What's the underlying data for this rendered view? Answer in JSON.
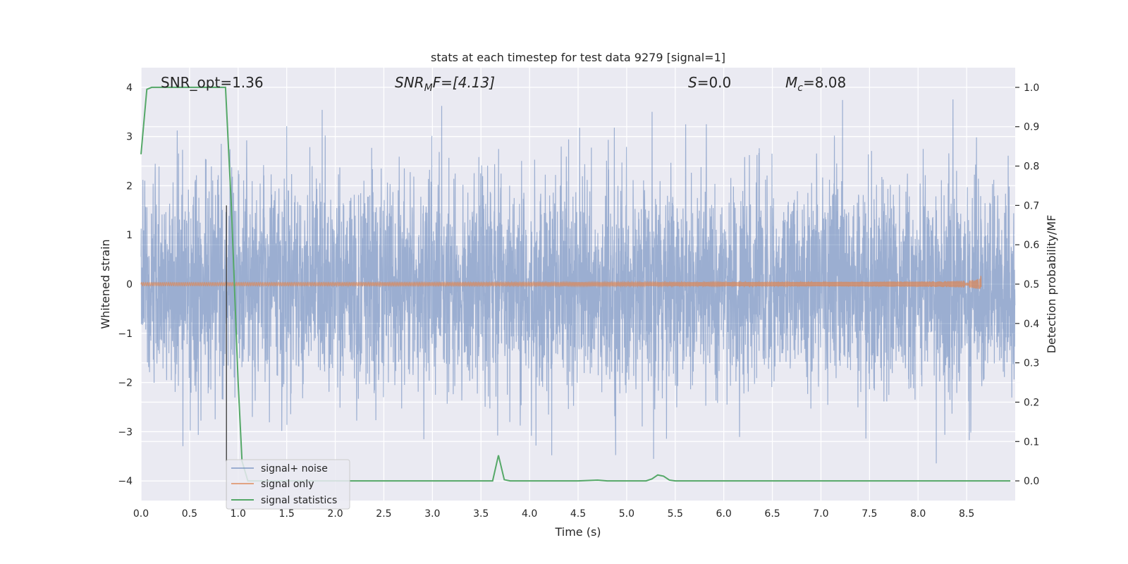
{
  "chart_data": {
    "type": "line",
    "title": "stats at each timestep for test data 9279 [signal=1]",
    "xlabel": "Time (s)",
    "ylabel": "Whitened strain",
    "y2label": "Detection probability/MF",
    "xlim": [
      0.0,
      9.0
    ],
    "ylim": [
      -4.4,
      4.4
    ],
    "y2lim": [
      -0.05,
      1.05
    ],
    "xticks": [
      0.0,
      0.5,
      1.0,
      1.5,
      2.0,
      2.5,
      3.0,
      3.5,
      4.0,
      4.5,
      5.0,
      5.5,
      6.0,
      6.5,
      7.0,
      7.5,
      8.0,
      8.5
    ],
    "xtick_labels": [
      "0.0",
      "0.5",
      "1.0",
      "1.5",
      "2.0",
      "2.5",
      "3.0",
      "3.5",
      "4.0",
      "4.5",
      "5.0",
      "5.5",
      "6.0",
      "6.5",
      "7.0",
      "7.5",
      "8.0",
      "8.5"
    ],
    "yticks": [
      -4,
      -3,
      -2,
      -1,
      0,
      1,
      2,
      3,
      4
    ],
    "ytick_labels": [
      "−4",
      "−3",
      "−2",
      "−1",
      "0",
      "1",
      "2",
      "3",
      "4"
    ],
    "y2ticks": [
      0.0,
      0.1,
      0.2,
      0.3,
      0.4,
      0.5,
      0.6,
      0.7,
      0.8,
      0.9,
      1.0
    ],
    "y2tick_labels": [
      "0.0",
      "0.1",
      "0.2",
      "0.3",
      "0.4",
      "0.5",
      "0.6",
      "0.7",
      "0.8",
      "0.9",
      "1.0"
    ],
    "grid": true,
    "legend_position": "lower-left",
    "annotations": {
      "snr_opt": "SNR_opt=1.36",
      "snr_mf_base": "SNR",
      "snr_mf_sub": "M",
      "snr_mf_rest": "F=[4.13]",
      "s_sym": "S",
      "s_rest": "=0.0",
      "mc_base": "M",
      "mc_sub": "c",
      "mc_rest": "=8.08"
    },
    "vline_x": 0.88,
    "series": [
      {
        "name": "signal+ noise",
        "axis": "left",
        "color": "#4c72b0",
        "description_range": [
          -3.7,
          4.0
        ],
        "sample_rate_hz": 512
      },
      {
        "name": "signal only",
        "axis": "left",
        "color": "#dd8452",
        "chirp_end_time": 8.65,
        "chirp_end_amplitude": 0.2
      },
      {
        "name": "signal statistics",
        "axis": "right",
        "color": "#55a868",
        "x": [
          0.0,
          0.06,
          0.11,
          0.2,
          0.3,
          0.5,
          0.7,
          0.87,
          0.93,
          1.0,
          1.04,
          1.1,
          1.2,
          1.5,
          2.0,
          2.5,
          3.0,
          3.3,
          3.5,
          3.62,
          3.68,
          3.74,
          3.8,
          4.0,
          4.5,
          4.7,
          4.8,
          5.0,
          5.2,
          5.26,
          5.32,
          5.38,
          5.44,
          5.5,
          6.0,
          6.5,
          7.0,
          7.5,
          8.0,
          8.5,
          8.95
        ],
        "y": [
          0.83,
          0.995,
          1.0,
          1.0,
          1.0,
          1.0,
          1.0,
          1.0,
          0.7,
          0.25,
          0.05,
          0.0,
          0.0,
          0.0,
          0.0,
          0.0,
          0.0,
          0.0,
          0.0,
          0.0,
          0.065,
          0.003,
          0.0,
          0.0,
          0.0,
          0.002,
          0.0,
          0.0,
          0.0,
          0.005,
          0.015,
          0.012,
          0.002,
          0.0,
          0.0,
          0.0,
          0.0,
          0.0,
          0.0,
          0.0,
          0.0
        ]
      }
    ]
  }
}
